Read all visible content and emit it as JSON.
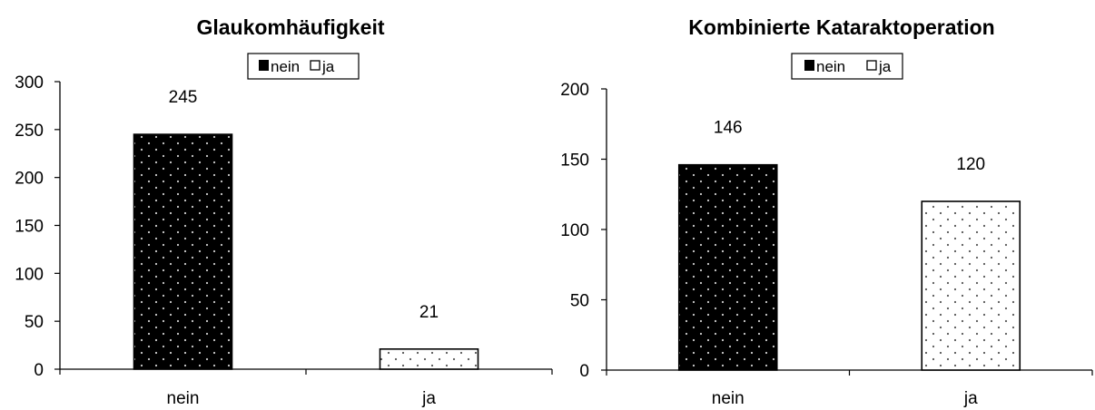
{
  "chart_data": [
    {
      "type": "bar",
      "title": "Glaukomhäufigkeit",
      "categories": [
        "nein",
        "ja"
      ],
      "values": [
        245,
        21
      ],
      "data_labels": [
        "245",
        "21"
      ],
      "ylim": [
        0,
        300
      ],
      "yticks": [
        0,
        50,
        100,
        150,
        200,
        250,
        300
      ],
      "legend": {
        "position": "top",
        "entries": [
          "nein",
          "ja"
        ]
      },
      "bar_styles": [
        "black-dotted",
        "white-dotted"
      ],
      "grid": false
    },
    {
      "type": "bar",
      "title": "Kombinierte Kataraktoperation",
      "categories": [
        "nein",
        "ja"
      ],
      "values": [
        146,
        120
      ],
      "data_labels": [
        "146",
        "120"
      ],
      "ylim": [
        0,
        200
      ],
      "yticks": [
        0,
        50,
        100,
        150,
        200
      ],
      "legend": {
        "position": "top",
        "entries": [
          "nein",
          "ja"
        ]
      },
      "bar_styles": [
        "black-dotted",
        "white-dotted"
      ],
      "grid": false
    }
  ],
  "colors": {
    "bar_dark": "#000000",
    "bar_light": "#ffffff",
    "dots_on_dark": "#cccccc",
    "dots_on_light": "#555555"
  }
}
